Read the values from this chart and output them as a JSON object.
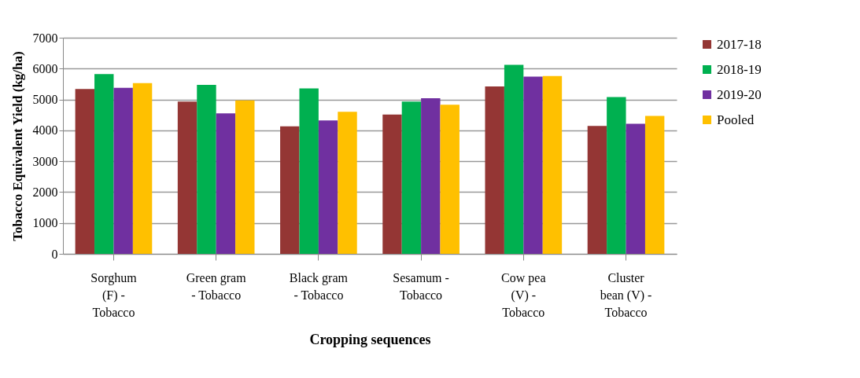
{
  "chart_data": {
    "type": "bar",
    "xlabel": "Cropping sequences",
    "ylabel": "Tobacco Equivalent Yield (kg/ha)",
    "categories": [
      "Sorghum (F) - Tobacco",
      "Green gram - Tobacco",
      "Black gram - Tobacco",
      "Sesamum - Tobacco",
      "Cow pea (V) - Tobacco",
      "Cluster bean (V) - Tobacco"
    ],
    "series": [
      {
        "name": "2017-18",
        "color": "#943634",
        "values": [
          5340,
          4930,
          4130,
          4510,
          5420,
          4140
        ]
      },
      {
        "name": "2018-19",
        "color": "#00b050",
        "values": [
          5820,
          5470,
          5360,
          4930,
          6120,
          5080
        ]
      },
      {
        "name": "2019-20",
        "color": "#7030a0",
        "values": [
          5380,
          4550,
          4320,
          5040,
          5740,
          4210
        ]
      },
      {
        "name": "Pooled",
        "color": "#ffc000",
        "values": [
          5530,
          4970,
          4600,
          4830,
          5760,
          4470
        ]
      }
    ],
    "ylim": [
      0,
      7000
    ],
    "yticks": [
      0,
      1000,
      2000,
      3000,
      4000,
      5000,
      6000,
      7000
    ],
    "grid": "y",
    "legend": "right"
  }
}
